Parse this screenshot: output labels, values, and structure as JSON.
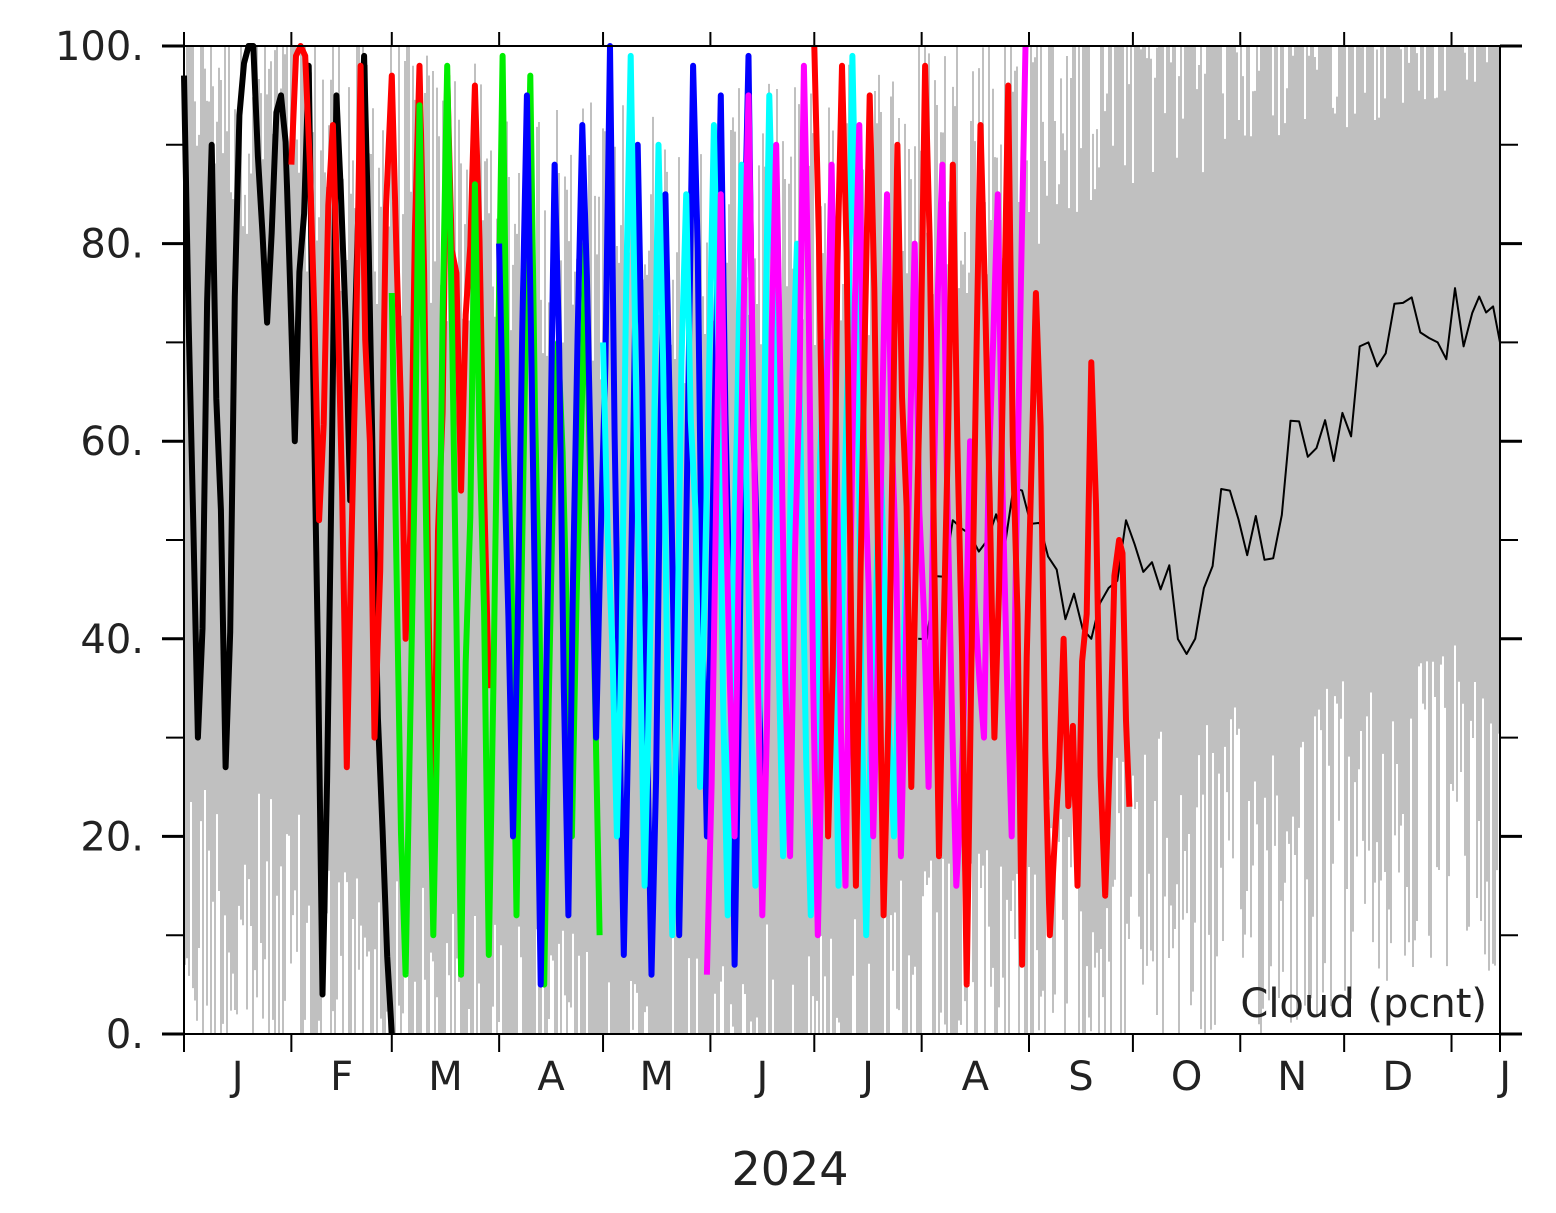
{
  "chart_data": {
    "type": "line",
    "xlabel": "2024",
    "annotation": "Cloud (pcnt)",
    "ylim": [
      0,
      100
    ],
    "y_ticks": [
      0,
      20,
      40,
      60,
      80,
      100
    ],
    "y_tick_labels": [
      "0.",
      "20.",
      "40.",
      "60.",
      "80.",
      "100."
    ],
    "y_minor_ticks": [
      10,
      30,
      50,
      70,
      90
    ],
    "x_domain": [
      "2024-01-01",
      "2025-01-15"
    ],
    "month_starts": [
      "2024-01-01",
      "2024-02-01",
      "2024-03-01",
      "2024-04-01",
      "2024-05-01",
      "2024-06-01",
      "2024-07-01",
      "2024-08-01",
      "2024-09-01",
      "2024-10-01",
      "2024-11-01",
      "2024-12-01",
      "2025-01-01"
    ],
    "month_labels": [
      "J",
      "F",
      "M",
      "A",
      "M",
      "J",
      "J",
      "A",
      "S",
      "O",
      "N",
      "D",
      "J"
    ],
    "grid": false,
    "legend": "none",
    "colors": {
      "climatology_band": "#c0c0c0",
      "climatology_mean": "#000000",
      "forecasts": [
        "#000000",
        "#ff0000",
        "#00ee00",
        "#0000ff",
        "#00ffff",
        "#ff00ff"
      ]
    },
    "series": [
      {
        "role": "climatology-mean",
        "color": "#000000",
        "x": [
          "2024-07-31",
          "2024-08-10",
          "2024-08-20",
          "2024-08-30",
          "2024-09-09",
          "2024-09-19",
          "2024-09-29",
          "2024-10-09",
          "2024-10-19",
          "2024-10-29",
          "2024-11-08",
          "2024-11-18",
          "2024-11-28",
          "2024-12-08",
          "2024-12-18",
          "2024-12-28",
          "2025-01-07",
          "2025-01-15"
        ],
        "values": [
          40,
          52,
          50,
          55,
          47,
          40,
          52,
          45,
          40,
          55,
          48,
          62,
          58,
          70,
          74,
          70,
          73,
          70
        ]
      },
      {
        "role": "forecast",
        "color": "#000000",
        "x": [
          "2024-01-01",
          "2024-01-05",
          "2024-01-09",
          "2024-01-13",
          "2024-01-17",
          "2024-01-21",
          "2024-01-25",
          "2024-01-29",
          "2024-02-02",
          "2024-02-06",
          "2024-02-10",
          "2024-02-14",
          "2024-02-18",
          "2024-02-22",
          "2024-02-26",
          "2024-03-01"
        ],
        "values": [
          97,
          30,
          90,
          27,
          93,
          100,
          72,
          95,
          60,
          98,
          4,
          95,
          54,
          99,
          32,
          0
        ]
      },
      {
        "role": "forecast",
        "color": "#ff0000",
        "x": [
          "2024-02-01",
          "2024-02-05",
          "2024-02-09",
          "2024-02-13",
          "2024-02-17",
          "2024-02-21",
          "2024-02-25",
          "2024-03-01",
          "2024-03-05",
          "2024-03-09",
          "2024-03-13",
          "2024-03-17",
          "2024-03-21",
          "2024-03-25",
          "2024-03-29"
        ],
        "values": [
          88,
          99,
          52,
          92,
          27,
          98,
          30,
          97,
          40,
          98,
          18,
          97,
          55,
          96,
          35
        ]
      },
      {
        "role": "forecast",
        "color": "#00ee00",
        "x": [
          "2024-03-01",
          "2024-03-05",
          "2024-03-09",
          "2024-03-13",
          "2024-03-17",
          "2024-03-21",
          "2024-03-25",
          "2024-03-29",
          "2024-04-02",
          "2024-04-06",
          "2024-04-10",
          "2024-04-14",
          "2024-04-18",
          "2024-04-22",
          "2024-04-26",
          "2024-04-30"
        ],
        "values": [
          75,
          6,
          94,
          10,
          98,
          6,
          86,
          8,
          99,
          12,
          97,
          5,
          70,
          20,
          80,
          10
        ]
      },
      {
        "role": "forecast",
        "color": "#0000ff",
        "x": [
          "2024-04-01",
          "2024-04-05",
          "2024-04-09",
          "2024-04-13",
          "2024-04-17",
          "2024-04-21",
          "2024-04-25",
          "2024-04-29",
          "2024-05-03",
          "2024-05-07",
          "2024-05-11",
          "2024-05-15",
          "2024-05-19",
          "2024-05-23",
          "2024-05-27",
          "2024-05-31",
          "2024-06-04",
          "2024-06-08",
          "2024-06-12",
          "2024-06-16"
        ],
        "values": [
          80,
          20,
          95,
          5,
          88,
          12,
          92,
          30,
          100,
          8,
          90,
          6,
          85,
          10,
          98,
          20,
          95,
          7,
          99,
          15
        ]
      },
      {
        "role": "forecast",
        "color": "#00ffff",
        "x": [
          "2024-05-01",
          "2024-05-05",
          "2024-05-09",
          "2024-05-13",
          "2024-05-17",
          "2024-05-21",
          "2024-05-25",
          "2024-05-29",
          "2024-06-02",
          "2024-06-06",
          "2024-06-10",
          "2024-06-14",
          "2024-06-18",
          "2024-06-22",
          "2024-06-26",
          "2024-06-30",
          "2024-07-04",
          "2024-07-08",
          "2024-07-12",
          "2024-07-16",
          "2024-07-20",
          "2024-07-24",
          "2024-07-28"
        ],
        "values": [
          70,
          20,
          99,
          15,
          90,
          10,
          85,
          25,
          92,
          12,
          88,
          15,
          95,
          18,
          80,
          12,
          70,
          15,
          99,
          10,
          60,
          20,
          55
        ]
      },
      {
        "role": "forecast",
        "color": "#ff00ff",
        "x": [
          "2024-05-31",
          "2024-06-04",
          "2024-06-08",
          "2024-06-12",
          "2024-06-16",
          "2024-06-20",
          "2024-06-24",
          "2024-06-28",
          "2024-07-02",
          "2024-07-06",
          "2024-07-10",
          "2024-07-14",
          "2024-07-18",
          "2024-07-22",
          "2024-07-26",
          "2024-07-30",
          "2024-08-03",
          "2024-08-07",
          "2024-08-11",
          "2024-08-15",
          "2024-08-19",
          "2024-08-23",
          "2024-08-27",
          "2024-08-31"
        ],
        "values": [
          6,
          85,
          20,
          95,
          12,
          90,
          18,
          98,
          10,
          88,
          15,
          92,
          20,
          85,
          18,
          80,
          25,
          88,
          15,
          60,
          30,
          85,
          20,
          100
        ]
      },
      {
        "role": "forecast",
        "color": "#ff0000",
        "x": [
          "2024-07-01",
          "2024-07-05",
          "2024-07-09",
          "2024-07-13",
          "2024-07-17",
          "2024-07-21",
          "2024-07-25",
          "2024-07-29",
          "2024-08-02",
          "2024-08-06",
          "2024-08-10",
          "2024-08-14",
          "2024-08-18",
          "2024-08-22",
          "2024-08-26",
          "2024-08-30",
          "2024-09-03",
          "2024-09-07",
          "2024-09-11",
          "2024-09-15",
          "2024-09-19",
          "2024-09-23",
          "2024-09-27",
          "2024-09-30"
        ],
        "values": [
          100,
          20,
          98,
          15,
          95,
          12,
          90,
          25,
          98,
          18,
          88,
          5,
          92,
          30,
          96,
          7,
          75,
          10,
          40,
          15,
          68,
          14,
          50,
          23
        ]
      }
    ]
  }
}
